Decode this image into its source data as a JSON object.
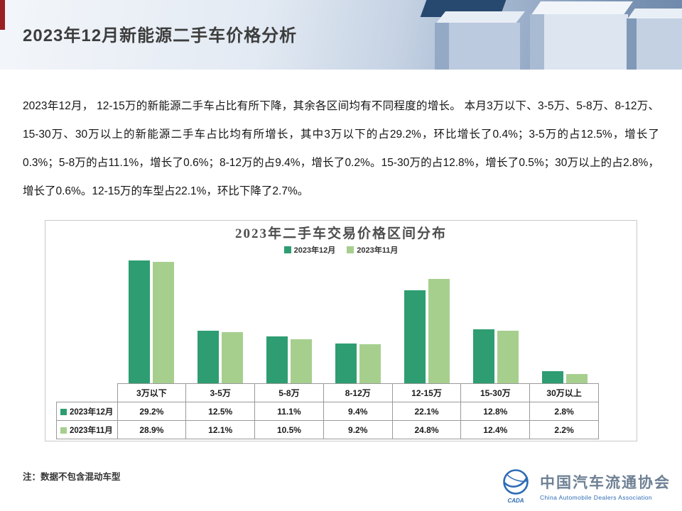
{
  "slide": {
    "title": "2023年12月新能源二手车价格分析",
    "body_paragraph": "2023年12月， 12-15万的新能源二手车占比有所下降，其余各区间均有不同程度的增长。 本月3万以下、3-5万、5-8万、8-12万、15-30万、30万以上的新能源二手车占比均有所增长，其中3万以下的占29.2%，环比增长了0.4%；3-5万的占12.5%，增长了0.3%；5-8万的占11.1%，增长了0.6%；8-12万的占9.4%，增长了0.2%。15-30万的占12.8%，增长了0.5%；30万以上的占2.8%，增长了0.6%。12-15万的车型占22.1%，环比下降了2.7%。",
    "footnote": "注：数据不包含混动车型"
  },
  "chart_data": {
    "type": "bar",
    "title": "2023年二手车交易价格区间分布",
    "categories": [
      "3万以下",
      "3-5万",
      "5-8万",
      "8-12万",
      "12-15万",
      "15-30万",
      "30万以上"
    ],
    "series": [
      {
        "name": "2023年12月",
        "color": "#2e9d72",
        "values": [
          29.2,
          12.5,
          11.1,
          9.4,
          22.1,
          12.8,
          2.8
        ]
      },
      {
        "name": "2023年11月",
        "color": "#a6cf8e",
        "values": [
          28.9,
          12.1,
          10.5,
          9.2,
          24.8,
          12.4,
          2.2
        ]
      }
    ],
    "ylim": [
      0,
      30
    ],
    "value_format": "percent",
    "legend_position": "top",
    "grid": false,
    "table_shown": true
  },
  "logo": {
    "org_cn": "中国汽车流通协会",
    "org_en": "China Automobile Dealers Association",
    "mark_text": "CADA",
    "brand_color": "#2d6bb5"
  }
}
